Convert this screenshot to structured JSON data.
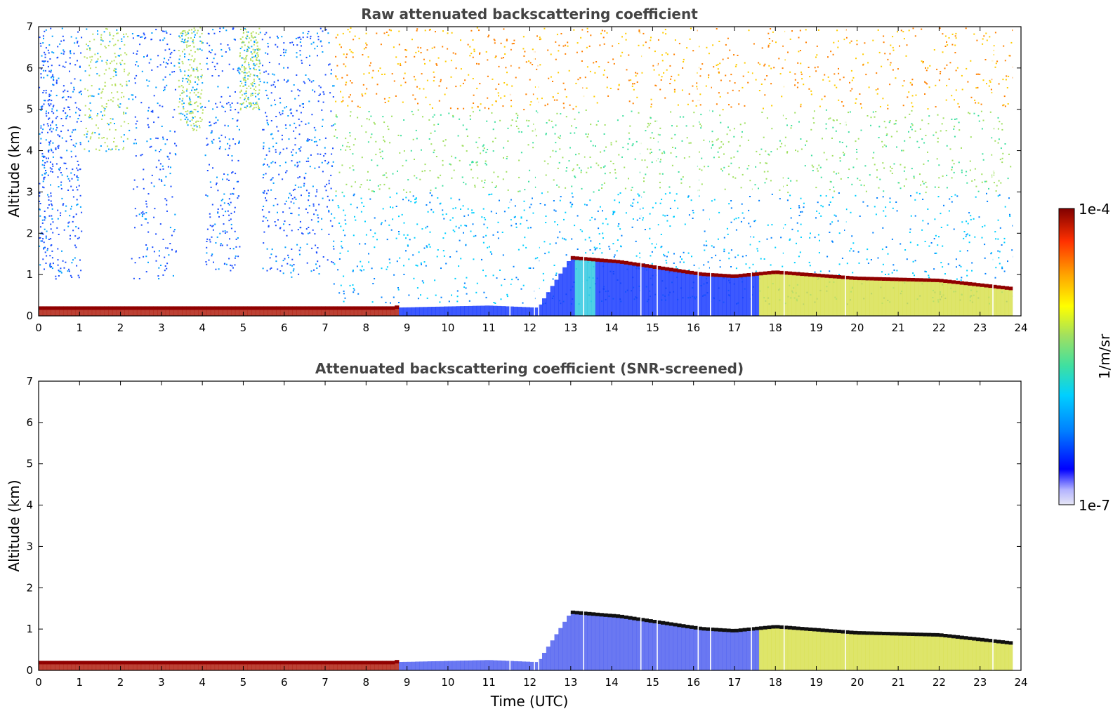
{
  "chart_data": [
    {
      "type": "heatmap",
      "title": "Raw attenuated backscattering coefficient",
      "xlabel": "",
      "ylabel": "Altitude (km)",
      "xlim": [
        0,
        24
      ],
      "ylim": [
        0,
        7
      ],
      "xticks": [
        "0",
        "1",
        "2",
        "3",
        "4",
        "5",
        "6",
        "7",
        "8",
        "9",
        "10",
        "11",
        "12",
        "13",
        "14",
        "15",
        "16",
        "17",
        "18",
        "19",
        "20",
        "21",
        "22",
        "23",
        "24"
      ],
      "yticks": [
        "0",
        "1",
        "2",
        "3",
        "4",
        "5",
        "6",
        "7"
      ],
      "features": {
        "surface_layer": {
          "x_range": [
            0,
            8.7
          ],
          "altitude_top_km": 0.18,
          "level": "high"
        },
        "boundary_layer_top": [
          [
            8.7,
            0.2
          ],
          [
            11.0,
            0.25
          ],
          [
            12.2,
            0.2
          ],
          [
            13.0,
            1.4
          ],
          [
            14.2,
            1.3
          ],
          [
            16.2,
            1.0
          ],
          [
            17.0,
            0.95
          ],
          [
            18.0,
            1.05
          ],
          [
            20.0,
            0.9
          ],
          [
            22.0,
            0.85
          ],
          [
            23.8,
            0.65
          ]
        ],
        "noise_high_altitude": {
          "x_range": [
            7.2,
            23.8
          ],
          "level": "medium-high"
        },
        "data_end_time": 23.8
      }
    },
    {
      "type": "heatmap",
      "title": "Attenuated backscattering coefficient (SNR-screened)",
      "xlabel": "Time (UTC)",
      "ylabel": "Altitude (km)",
      "xlim": [
        0,
        24
      ],
      "ylim": [
        0,
        7
      ],
      "xticks": [
        "0",
        "1",
        "2",
        "3",
        "4",
        "5",
        "6",
        "7",
        "8",
        "9",
        "10",
        "11",
        "12",
        "13",
        "14",
        "15",
        "16",
        "17",
        "18",
        "19",
        "20",
        "21",
        "22",
        "23",
        "24"
      ],
      "yticks": [
        "0",
        "1",
        "2",
        "3",
        "4",
        "5",
        "6",
        "7"
      ],
      "features": {
        "surface_layer": {
          "x_range": [
            0,
            8.7
          ],
          "altitude_top_km": 0.18,
          "level": "high"
        },
        "cloud_layer": [
          [
            13.0,
            1.35
          ],
          [
            14.2,
            1.3
          ],
          [
            17.5,
            1.0
          ],
          [
            18.0,
            1.05
          ],
          [
            20.0,
            0.88
          ],
          [
            22.0,
            0.85
          ],
          [
            23.8,
            0.65
          ]
        ],
        "data_end_time": 23.8
      }
    }
  ],
  "colorbar": {
    "label": "1/m/sr",
    "max_label": "1e-4",
    "min_label": "1e-7",
    "colors": [
      "#e6e6f5",
      "#b4b4ff",
      "#0000ff",
      "#0080ff",
      "#00d0ff",
      "#40e0a0",
      "#a0e060",
      "#ffff00",
      "#ffa000",
      "#ff3000",
      "#800000"
    ]
  }
}
